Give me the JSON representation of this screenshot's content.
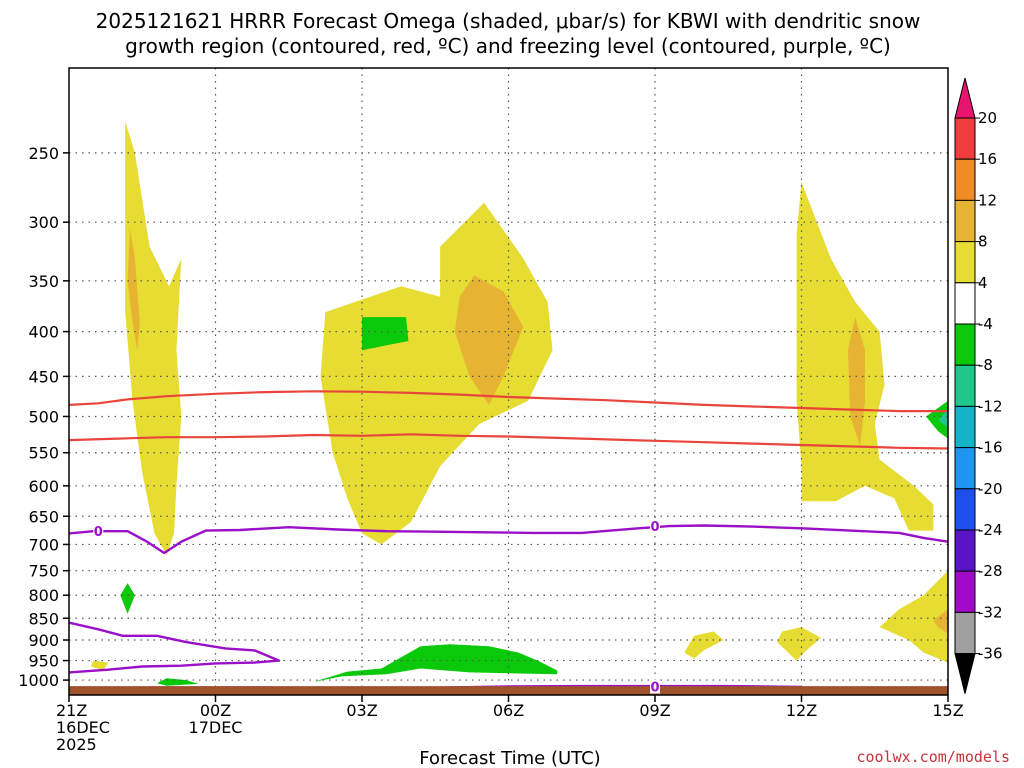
{
  "chart_data": {
    "type": "contour",
    "title_line1": "2025121621 HRRR Forecast Omega (shaded, μbar/s) for KBWI with dendritic snow",
    "title_line2": "growth region (contoured, red, ºC) and freezing level (contoured, purple, ºC)",
    "xlabel": "Forecast Time (UTC)",
    "credit": "coolwx.com/models",
    "x_ticks": [
      {
        "hour": 0,
        "label": [
          "21Z",
          "16DEC",
          "2025"
        ]
      },
      {
        "hour": 3,
        "label": [
          "00Z",
          "17DEC"
        ]
      },
      {
        "hour": 6,
        "label": [
          "03Z"
        ]
      },
      {
        "hour": 9,
        "label": [
          "06Z"
        ]
      },
      {
        "hour": 12,
        "label": [
          "09Z"
        ]
      },
      {
        "hour": 15,
        "label": [
          "12Z"
        ]
      },
      {
        "hour": 18,
        "label": [
          "15Z"
        ]
      }
    ],
    "x_range_hours": [
      0,
      18
    ],
    "y_ticks": [
      250,
      300,
      350,
      400,
      450,
      500,
      550,
      600,
      650,
      700,
      750,
      800,
      850,
      900,
      950,
      1000
    ],
    "y_scale": "log-pressure",
    "y_range_hPa": [
      200,
      1040
    ],
    "colorbar": {
      "labels": [
        "20",
        "16",
        "12",
        "8",
        "4",
        "-4",
        "-8",
        "-12",
        "-16",
        "-20",
        "-24",
        "-28",
        "-32",
        "-36"
      ],
      "colors": [
        "#e8146e",
        "#f03c3c",
        "#f08c28",
        "#e6b432",
        "#e6dc32",
        "#ffffff",
        "#0ac80a",
        "#1ec88c",
        "#14b4c8",
        "#1e96f0",
        "#1e50f0",
        "#5a14c8",
        "#a00ac8",
        "#a0a0a0",
        "#000000"
      ]
    },
    "omega_colors": {
      "4-8": "#e6dc32",
      "8-12": "#e6b432",
      "-8--4": "#0ac80a",
      "-12--8": "#1ec88c",
      "terrain": "#a0522d"
    },
    "omega_regions": [
      {
        "name": "updraft-a",
        "level": "4-8",
        "pts": [
          [
            1.15,
            230
          ],
          [
            1.35,
            250
          ],
          [
            1.65,
            320
          ],
          [
            2.05,
            355
          ],
          [
            2.3,
            330
          ],
          [
            2.2,
            420
          ],
          [
            2.3,
            500
          ],
          [
            2.2,
            600
          ],
          [
            2.15,
            680
          ],
          [
            2.0,
            720
          ],
          [
            1.75,
            680
          ],
          [
            1.5,
            580
          ],
          [
            1.3,
            480
          ],
          [
            1.15,
            380
          ],
          [
            1.15,
            280
          ]
        ]
      },
      {
        "name": "updraft-a-core",
        "level": "8-12",
        "pts": [
          [
            1.25,
            305
          ],
          [
            1.35,
            330
          ],
          [
            1.45,
            390
          ],
          [
            1.4,
            420
          ],
          [
            1.3,
            390
          ],
          [
            1.2,
            350
          ]
        ]
      },
      {
        "name": "updraft-b",
        "level": "4-8",
        "pts": [
          [
            6.8,
            355
          ],
          [
            7.6,
            365
          ],
          [
            7.6,
            320
          ],
          [
            8.5,
            285
          ],
          [
            9.3,
            330
          ],
          [
            9.8,
            370
          ],
          [
            9.9,
            420
          ],
          [
            9.4,
            480
          ],
          [
            8.4,
            510
          ],
          [
            7.6,
            570
          ],
          [
            7.0,
            660
          ],
          [
            6.4,
            700
          ],
          [
            6.0,
            680
          ],
          [
            5.7,
            620
          ],
          [
            5.4,
            550
          ],
          [
            5.15,
            450
          ],
          [
            5.25,
            380
          ]
        ]
      },
      {
        "name": "updraft-b-core",
        "level": "8-12",
        "pts": [
          [
            8.3,
            345
          ],
          [
            8.9,
            360
          ],
          [
            9.3,
            395
          ],
          [
            8.9,
            450
          ],
          [
            8.6,
            485
          ],
          [
            8.2,
            450
          ],
          [
            7.9,
            400
          ],
          [
            8.0,
            365
          ]
        ]
      },
      {
        "name": "updraft-c",
        "level": "4-8",
        "pts": [
          [
            15.0,
            270
          ],
          [
            15.6,
            330
          ],
          [
            16.1,
            370
          ],
          [
            16.6,
            400
          ],
          [
            16.7,
            460
          ],
          [
            16.5,
            510
          ],
          [
            16.6,
            560
          ],
          [
            17.3,
            600
          ],
          [
            17.7,
            630
          ],
          [
            17.7,
            675
          ],
          [
            17.2,
            675
          ],
          [
            16.9,
            620
          ],
          [
            16.3,
            600
          ],
          [
            15.7,
            625
          ],
          [
            15.0,
            625
          ],
          [
            15.0,
            570
          ],
          [
            14.9,
            480
          ],
          [
            14.9,
            310
          ]
        ]
      },
      {
        "name": "updraft-c-core",
        "level": "8-12",
        "pts": [
          [
            16.1,
            385
          ],
          [
            16.3,
            420
          ],
          [
            16.3,
            480
          ],
          [
            16.2,
            540
          ],
          [
            16.0,
            500
          ],
          [
            15.95,
            420
          ]
        ]
      },
      {
        "name": "updraft-d",
        "level": "4-8",
        "pts": [
          [
            18.0,
            750
          ],
          [
            18.0,
            955
          ],
          [
            17.5,
            930
          ],
          [
            17.2,
            900
          ],
          [
            16.8,
            880
          ],
          [
            16.6,
            870
          ],
          [
            17.0,
            830
          ],
          [
            17.5,
            800
          ]
        ]
      },
      {
        "name": "updraft-d-core",
        "level": "8-12",
        "pts": [
          [
            18.0,
            830
          ],
          [
            18.0,
            885
          ],
          [
            17.8,
            870
          ],
          [
            17.7,
            855
          ]
        ]
      },
      {
        "name": "updraft-e",
        "level": "4-8",
        "pts": [
          [
            12.8,
            890
          ],
          [
            13.2,
            880
          ],
          [
            13.4,
            900
          ],
          [
            13.0,
            925
          ],
          [
            12.8,
            945
          ],
          [
            12.6,
            930
          ]
        ]
      },
      {
        "name": "updraft-f",
        "level": "4-8",
        "pts": [
          [
            14.6,
            880
          ],
          [
            15.0,
            870
          ],
          [
            15.4,
            895
          ],
          [
            15.1,
            925
          ],
          [
            14.9,
            950
          ],
          [
            14.5,
            905
          ]
        ]
      },
      {
        "name": "updraft-g",
        "level": "4-8",
        "pts": [
          [
            0.5,
            950
          ],
          [
            0.8,
            955
          ],
          [
            0.7,
            975
          ],
          [
            0.45,
            965
          ]
        ]
      },
      {
        "name": "downdraft-a",
        "level": "-8--4",
        "pts": [
          [
            6.0,
            385
          ],
          [
            6.9,
            385
          ],
          [
            6.95,
            410
          ],
          [
            6.0,
            420
          ]
        ]
      },
      {
        "name": "downdraft-b",
        "level": "-8--4",
        "pts": [
          [
            6.9,
            935
          ],
          [
            7.2,
            915
          ],
          [
            7.8,
            910
          ],
          [
            8.6,
            915
          ],
          [
            9.2,
            930
          ],
          [
            9.6,
            950
          ],
          [
            10.0,
            975
          ],
          [
            10.0,
            985
          ],
          [
            8.2,
            980
          ],
          [
            7.2,
            970
          ],
          [
            6.5,
            985
          ],
          [
            5.6,
            990
          ],
          [
            5.0,
            1005
          ],
          [
            5.7,
            978
          ],
          [
            6.4,
            970
          ]
        ]
      },
      {
        "name": "downdraft-c",
        "level": "-8--4",
        "pts": [
          [
            1.2,
            775
          ],
          [
            1.35,
            800
          ],
          [
            1.2,
            840
          ],
          [
            1.05,
            800
          ]
        ]
      },
      {
        "name": "downdraft-d",
        "level": "-8--4",
        "pts": [
          [
            2.0,
            995
          ],
          [
            2.4,
            1000
          ],
          [
            2.65,
            1010
          ],
          [
            2.0,
            1015
          ],
          [
            1.8,
            1008
          ]
        ]
      },
      {
        "name": "downdraft-e",
        "level": "-8--4",
        "pts": [
          [
            18.0,
            480
          ],
          [
            17.55,
            500
          ],
          [
            17.8,
            520
          ],
          [
            18.0,
            530
          ]
        ]
      },
      {
        "name": "downdraft-e-core",
        "level": "-12--8",
        "pts": [
          [
            18.0,
            490
          ],
          [
            17.8,
            505
          ],
          [
            18.0,
            515
          ]
        ]
      }
    ],
    "dgz_lines": [
      {
        "name": "-12C",
        "pts": [
          [
            0,
            485
          ],
          [
            0.6,
            483
          ],
          [
            1.2,
            478
          ],
          [
            2.0,
            474
          ],
          [
            3,
            471
          ],
          [
            4,
            469
          ],
          [
            5,
            468
          ],
          [
            6,
            468.5
          ],
          [
            7,
            470
          ],
          [
            8,
            472
          ],
          [
            9,
            475
          ],
          [
            10,
            477
          ],
          [
            11,
            479
          ],
          [
            12,
            482
          ],
          [
            13,
            485
          ],
          [
            14,
            487
          ],
          [
            15,
            489
          ],
          [
            16,
            491
          ],
          [
            17,
            493
          ],
          [
            18,
            493
          ]
        ]
      },
      {
        "name": "-18C",
        "pts": [
          [
            0,
            532
          ],
          [
            1,
            530
          ],
          [
            2,
            528
          ],
          [
            3,
            528
          ],
          [
            4,
            527
          ],
          [
            5,
            525
          ],
          [
            6,
            526
          ],
          [
            7,
            524
          ],
          [
            8,
            526
          ],
          [
            9,
            527
          ],
          [
            10,
            529
          ],
          [
            11,
            531
          ],
          [
            12,
            533
          ],
          [
            13,
            535
          ],
          [
            14,
            537
          ],
          [
            15,
            539
          ],
          [
            16,
            541
          ],
          [
            17,
            543
          ],
          [
            18,
            544
          ]
        ]
      }
    ],
    "freezing_lines": [
      {
        "name": "fz-upper",
        "pts": [
          [
            0,
            680
          ],
          [
            0.5,
            676
          ],
          [
            1.2,
            676
          ],
          [
            1.6,
            695
          ],
          [
            1.95,
            716
          ],
          [
            2.3,
            695
          ],
          [
            2.8,
            675
          ],
          [
            3.5,
            674
          ],
          [
            4.5,
            669
          ],
          [
            5.5,
            673
          ],
          [
            6.5,
            676
          ],
          [
            7.5,
            677
          ],
          [
            8.5,
            678
          ],
          [
            9.5,
            679
          ],
          [
            10.5,
            679
          ],
          [
            11.5,
            672
          ],
          [
            12.3,
            667
          ],
          [
            13,
            666
          ],
          [
            14,
            668
          ],
          [
            15,
            671
          ],
          [
            16,
            675
          ],
          [
            17,
            679
          ],
          [
            17.5,
            688
          ],
          [
            18,
            695
          ]
        ]
      },
      {
        "name": "fz-lower",
        "pts": [
          [
            0,
            860
          ],
          [
            0.6,
            875
          ],
          [
            1.1,
            890
          ],
          [
            1.8,
            890
          ],
          [
            2.4,
            905
          ],
          [
            3.2,
            920
          ],
          [
            3.8,
            925
          ],
          [
            4.3,
            950
          ],
          [
            3.8,
            955
          ],
          [
            3.0,
            957
          ],
          [
            2.3,
            963
          ],
          [
            1.5,
            965
          ],
          [
            0.8,
            973
          ],
          [
            0,
            980
          ]
        ]
      },
      {
        "name": "fz-surface-a",
        "pts": [
          [
            1.6,
            1020
          ],
          [
            2.5,
            1020
          ],
          [
            3.5,
            1020
          ],
          [
            4.2,
            1020
          ]
        ]
      },
      {
        "name": "fz-surface-b",
        "pts": [
          [
            7.7,
            1020
          ],
          [
            9,
            1017
          ],
          [
            10.5,
            1016
          ],
          [
            12,
            1016
          ],
          [
            13.5,
            1016
          ],
          [
            15,
            1018
          ]
        ]
      }
    ],
    "freezing_labels": [
      {
        "text": "0",
        "hour": 0.6,
        "p": 676
      },
      {
        "text": "0",
        "hour": 12.0,
        "p": 667
      },
      {
        "text": "0",
        "hour": 12.0,
        "p": 1017
      }
    ],
    "terrain_top_hPa": 1016
  }
}
